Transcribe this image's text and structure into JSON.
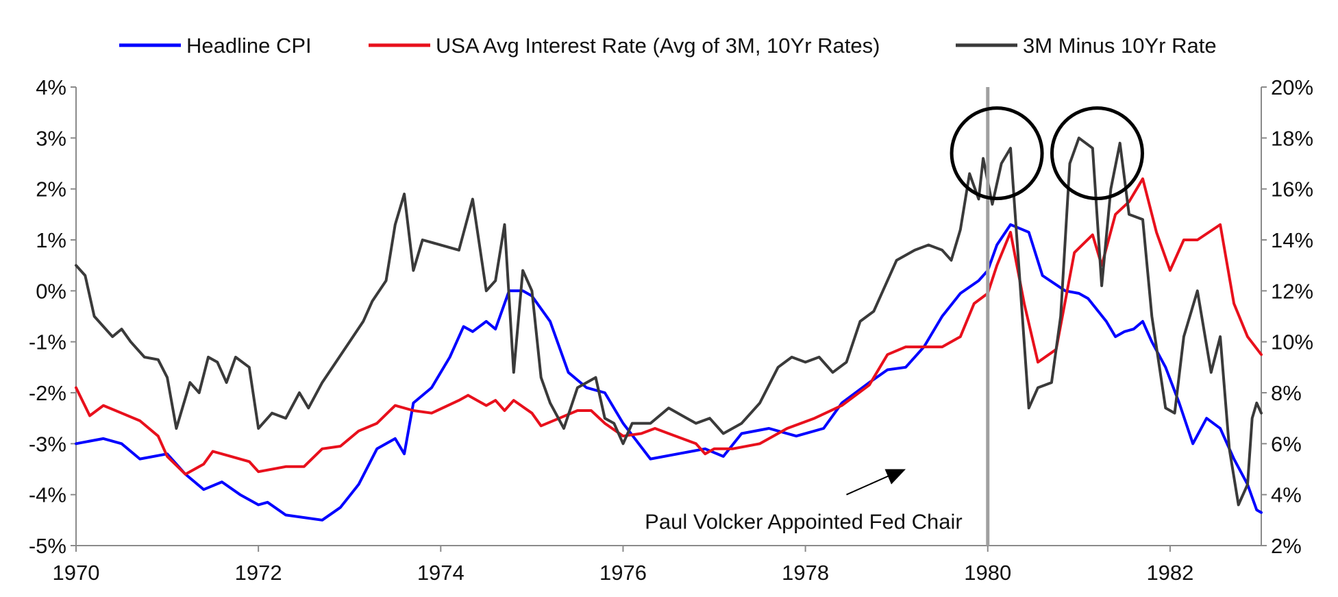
{
  "chart_data": {
    "type": "line",
    "title": "",
    "x_ticks": [
      "1970",
      "1972",
      "1974",
      "1976",
      "1978",
      "1980",
      "1982"
    ],
    "xlim": [
      1970,
      1983
    ],
    "y_left": {
      "label": "",
      "lim": [
        -5,
        4
      ],
      "ticks": [
        4,
        3,
        2,
        1,
        0,
        -1,
        -2,
        -3,
        -4,
        -5
      ],
      "tick_labels": [
        "4%",
        "3%",
        "2%",
        "1%",
        "0%",
        "-1%",
        "-2%",
        "-3%",
        "-4%",
        "-5%"
      ]
    },
    "y_right": {
      "label": "",
      "lim": [
        2,
        20
      ],
      "ticks": [
        20,
        18,
        16,
        14,
        12,
        10,
        8,
        6,
        4,
        2
      ],
      "tick_labels": [
        "20%",
        "18%",
        "16%",
        "14%",
        "12%",
        "10%",
        "8%",
        "6%",
        "4%",
        "2%"
      ]
    },
    "grid": false,
    "legend_position": "top",
    "series": [
      {
        "name": "Headline CPI",
        "axis": "left",
        "color": "#0000ff",
        "points": [
          [
            1970.0,
            -3.0
          ],
          [
            1970.3,
            -2.9
          ],
          [
            1970.5,
            -3.0
          ],
          [
            1970.7,
            -3.3
          ],
          [
            1971.0,
            -3.2
          ],
          [
            1971.2,
            -3.6
          ],
          [
            1971.4,
            -3.9
          ],
          [
            1971.6,
            -3.75
          ],
          [
            1971.8,
            -4.0
          ],
          [
            1972.0,
            -4.2
          ],
          [
            1972.1,
            -4.15
          ],
          [
            1972.3,
            -4.4
          ],
          [
            1972.7,
            -4.5
          ],
          [
            1972.9,
            -4.25
          ],
          [
            1973.1,
            -3.8
          ],
          [
            1973.3,
            -3.1
          ],
          [
            1973.5,
            -2.9
          ],
          [
            1973.6,
            -3.2
          ],
          [
            1973.7,
            -2.2
          ],
          [
            1973.9,
            -1.9
          ],
          [
            1974.1,
            -1.3
          ],
          [
            1974.25,
            -0.7
          ],
          [
            1974.35,
            -0.8
          ],
          [
            1974.5,
            -0.6
          ],
          [
            1974.6,
            -0.75
          ],
          [
            1974.75,
            0.0
          ],
          [
            1974.9,
            0.0
          ],
          [
            1975.0,
            -0.1
          ],
          [
            1975.2,
            -0.6
          ],
          [
            1975.4,
            -1.6
          ],
          [
            1975.6,
            -1.9
          ],
          [
            1975.8,
            -2.0
          ],
          [
            1976.0,
            -2.6
          ],
          [
            1976.3,
            -3.3
          ],
          [
            1976.6,
            -3.2
          ],
          [
            1976.9,
            -3.1
          ],
          [
            1977.1,
            -3.25
          ],
          [
            1977.3,
            -2.8
          ],
          [
            1977.6,
            -2.7
          ],
          [
            1977.9,
            -2.85
          ],
          [
            1978.2,
            -2.7
          ],
          [
            1978.4,
            -2.2
          ],
          [
            1978.7,
            -1.8
          ],
          [
            1978.9,
            -1.55
          ],
          [
            1979.1,
            -1.5
          ],
          [
            1979.3,
            -1.1
          ],
          [
            1979.5,
            -0.5
          ],
          [
            1979.7,
            -0.05
          ],
          [
            1979.9,
            0.2
          ],
          [
            1980.0,
            0.4
          ],
          [
            1980.1,
            0.9
          ],
          [
            1980.25,
            1.3
          ],
          [
            1980.45,
            1.15
          ],
          [
            1980.6,
            0.3
          ],
          [
            1980.85,
            0.0
          ],
          [
            1981.0,
            -0.05
          ],
          [
            1981.1,
            -0.15
          ],
          [
            1981.3,
            -0.6
          ],
          [
            1981.4,
            -0.9
          ],
          [
            1981.5,
            -0.8
          ],
          [
            1981.6,
            -0.75
          ],
          [
            1981.7,
            -0.6
          ],
          [
            1981.8,
            -1.0
          ],
          [
            1981.95,
            -1.5
          ],
          [
            1982.1,
            -2.2
          ],
          [
            1982.25,
            -3.0
          ],
          [
            1982.4,
            -2.5
          ],
          [
            1982.55,
            -2.7
          ],
          [
            1982.7,
            -3.3
          ],
          [
            1982.85,
            -3.8
          ],
          [
            1982.95,
            -4.3
          ],
          [
            1983.0,
            -4.35
          ]
        ]
      },
      {
        "name": "USA Avg Interest Rate (Avg of 3M, 10Yr Rates)",
        "axis": "right",
        "color": "#e8101c",
        "points": [
          [
            1970.0,
            8.2
          ],
          [
            1970.15,
            7.1
          ],
          [
            1970.3,
            7.5
          ],
          [
            1970.5,
            7.2
          ],
          [
            1970.7,
            6.9
          ],
          [
            1970.9,
            6.3
          ],
          [
            1971.0,
            5.5
          ],
          [
            1971.2,
            4.8
          ],
          [
            1971.4,
            5.2
          ],
          [
            1971.5,
            5.7
          ],
          [
            1971.7,
            5.5
          ],
          [
            1971.9,
            5.3
          ],
          [
            1972.0,
            4.9
          ],
          [
            1972.3,
            5.1
          ],
          [
            1972.5,
            5.1
          ],
          [
            1972.7,
            5.8
          ],
          [
            1972.9,
            5.9
          ],
          [
            1973.1,
            6.5
          ],
          [
            1973.3,
            6.8
          ],
          [
            1973.5,
            7.5
          ],
          [
            1973.7,
            7.3
          ],
          [
            1973.9,
            7.2
          ],
          [
            1974.2,
            7.7
          ],
          [
            1974.3,
            7.9
          ],
          [
            1974.5,
            7.5
          ],
          [
            1974.6,
            7.7
          ],
          [
            1974.7,
            7.3
          ],
          [
            1974.8,
            7.7
          ],
          [
            1975.0,
            7.2
          ],
          [
            1975.1,
            6.7
          ],
          [
            1975.3,
            7.0
          ],
          [
            1975.5,
            7.3
          ],
          [
            1975.65,
            7.3
          ],
          [
            1975.8,
            6.8
          ],
          [
            1976.0,
            6.3
          ],
          [
            1976.2,
            6.4
          ],
          [
            1976.35,
            6.6
          ],
          [
            1976.5,
            6.4
          ],
          [
            1976.8,
            6.0
          ],
          [
            1976.9,
            5.6
          ],
          [
            1977.0,
            5.8
          ],
          [
            1977.2,
            5.8
          ],
          [
            1977.5,
            6.0
          ],
          [
            1977.8,
            6.6
          ],
          [
            1978.1,
            7.0
          ],
          [
            1978.4,
            7.5
          ],
          [
            1978.7,
            8.3
          ],
          [
            1978.9,
            9.5
          ],
          [
            1979.1,
            9.8
          ],
          [
            1979.3,
            9.8
          ],
          [
            1979.5,
            9.8
          ],
          [
            1979.7,
            10.2
          ],
          [
            1979.85,
            11.5
          ],
          [
            1980.0,
            11.9
          ],
          [
            1980.1,
            13.0
          ],
          [
            1980.25,
            14.3
          ],
          [
            1980.4,
            11.5
          ],
          [
            1980.55,
            9.2
          ],
          [
            1980.75,
            9.7
          ],
          [
            1980.95,
            13.5
          ],
          [
            1981.15,
            14.2
          ],
          [
            1981.25,
            13.0
          ],
          [
            1981.4,
            15.0
          ],
          [
            1981.55,
            15.5
          ],
          [
            1981.7,
            16.4
          ],
          [
            1981.85,
            14.3
          ],
          [
            1982.0,
            12.8
          ],
          [
            1982.15,
            14.0
          ],
          [
            1982.3,
            14.0
          ],
          [
            1982.55,
            14.6
          ],
          [
            1982.7,
            11.5
          ],
          [
            1982.85,
            10.2
          ],
          [
            1983.0,
            9.5
          ]
        ]
      },
      {
        "name": "3M Minus 10Yr Rate",
        "axis": "left",
        "color": "#3a3a3a",
        "points": [
          [
            1970.0,
            0.5
          ],
          [
            1970.1,
            0.3
          ],
          [
            1970.2,
            -0.5
          ],
          [
            1970.4,
            -0.9
          ],
          [
            1970.5,
            -0.75
          ],
          [
            1970.6,
            -1.0
          ],
          [
            1970.75,
            -1.3
          ],
          [
            1970.9,
            -1.35
          ],
          [
            1971.0,
            -1.7
          ],
          [
            1971.1,
            -2.7
          ],
          [
            1971.25,
            -1.8
          ],
          [
            1971.35,
            -2.0
          ],
          [
            1971.45,
            -1.3
          ],
          [
            1971.55,
            -1.4
          ],
          [
            1971.65,
            -1.8
          ],
          [
            1971.75,
            -1.3
          ],
          [
            1971.9,
            -1.5
          ],
          [
            1972.0,
            -2.7
          ],
          [
            1972.15,
            -2.4
          ],
          [
            1972.3,
            -2.5
          ],
          [
            1972.45,
            -2.0
          ],
          [
            1972.55,
            -2.3
          ],
          [
            1972.7,
            -1.8
          ],
          [
            1972.85,
            -1.4
          ],
          [
            1973.0,
            -1.0
          ],
          [
            1973.15,
            -0.6
          ],
          [
            1973.25,
            -0.2
          ],
          [
            1973.4,
            0.2
          ],
          [
            1973.5,
            1.3
          ],
          [
            1973.6,
            1.9
          ],
          [
            1973.7,
            0.4
          ],
          [
            1973.8,
            1.0
          ],
          [
            1974.0,
            0.9
          ],
          [
            1974.2,
            0.8
          ],
          [
            1974.35,
            1.8
          ],
          [
            1974.5,
            0.0
          ],
          [
            1974.6,
            0.2
          ],
          [
            1974.7,
            1.3
          ],
          [
            1974.8,
            -1.6
          ],
          [
            1974.9,
            0.4
          ],
          [
            1975.0,
            0.0
          ],
          [
            1975.1,
            -1.7
          ],
          [
            1975.2,
            -2.2
          ],
          [
            1975.35,
            -2.7
          ],
          [
            1975.5,
            -1.9
          ],
          [
            1975.7,
            -1.7
          ],
          [
            1975.8,
            -2.5
          ],
          [
            1975.9,
            -2.6
          ],
          [
            1976.0,
            -3.0
          ],
          [
            1976.1,
            -2.6
          ],
          [
            1976.3,
            -2.6
          ],
          [
            1976.5,
            -2.3
          ],
          [
            1976.7,
            -2.5
          ],
          [
            1976.8,
            -2.6
          ],
          [
            1976.95,
            -2.5
          ],
          [
            1977.1,
            -2.8
          ],
          [
            1977.3,
            -2.6
          ],
          [
            1977.5,
            -2.2
          ],
          [
            1977.7,
            -1.5
          ],
          [
            1977.85,
            -1.3
          ],
          [
            1978.0,
            -1.4
          ],
          [
            1978.15,
            -1.3
          ],
          [
            1978.3,
            -1.6
          ],
          [
            1978.45,
            -1.4
          ],
          [
            1978.6,
            -0.6
          ],
          [
            1978.75,
            -0.4
          ],
          [
            1978.85,
            0.0
          ],
          [
            1979.0,
            0.6
          ],
          [
            1979.2,
            0.8
          ],
          [
            1979.35,
            0.9
          ],
          [
            1979.5,
            0.8
          ],
          [
            1979.6,
            0.6
          ],
          [
            1979.7,
            1.2
          ],
          [
            1979.8,
            2.3
          ],
          [
            1979.9,
            1.8
          ],
          [
            1979.95,
            2.6
          ],
          [
            1980.05,
            1.7
          ],
          [
            1980.15,
            2.5
          ],
          [
            1980.25,
            2.8
          ],
          [
            1980.45,
            -2.3
          ],
          [
            1980.55,
            -1.9
          ],
          [
            1980.7,
            -1.8
          ],
          [
            1980.8,
            -0.5
          ],
          [
            1980.9,
            2.5
          ],
          [
            1981.0,
            3.0
          ],
          [
            1981.15,
            2.8
          ],
          [
            1981.25,
            0.1
          ],
          [
            1981.35,
            2.0
          ],
          [
            1981.45,
            2.9
          ],
          [
            1981.55,
            1.5
          ],
          [
            1981.7,
            1.4
          ],
          [
            1981.8,
            -0.5
          ],
          [
            1981.95,
            -2.3
          ],
          [
            1982.05,
            -2.4
          ],
          [
            1982.15,
            -0.9
          ],
          [
            1982.3,
            0.0
          ],
          [
            1982.45,
            -1.6
          ],
          [
            1982.55,
            -0.9
          ],
          [
            1982.65,
            -3.1
          ],
          [
            1982.75,
            -4.2
          ],
          [
            1982.85,
            -3.8
          ],
          [
            1982.9,
            -2.5
          ],
          [
            1982.95,
            -2.2
          ],
          [
            1983.0,
            -2.4
          ]
        ]
      }
    ],
    "annotations": [
      {
        "kind": "vertical-line",
        "x": 1980.0,
        "color": "#a0a0a0"
      },
      {
        "kind": "circle",
        "x": 1980.1,
        "y": 2.7
      },
      {
        "kind": "circle",
        "x": 1981.2,
        "y": 2.7
      },
      {
        "kind": "arrow-label",
        "text": "Paul Volcker Appointed Fed Chair",
        "from": [
          1978.45,
          -4.0
        ],
        "to": [
          1979.1,
          -3.5
        ]
      }
    ]
  }
}
